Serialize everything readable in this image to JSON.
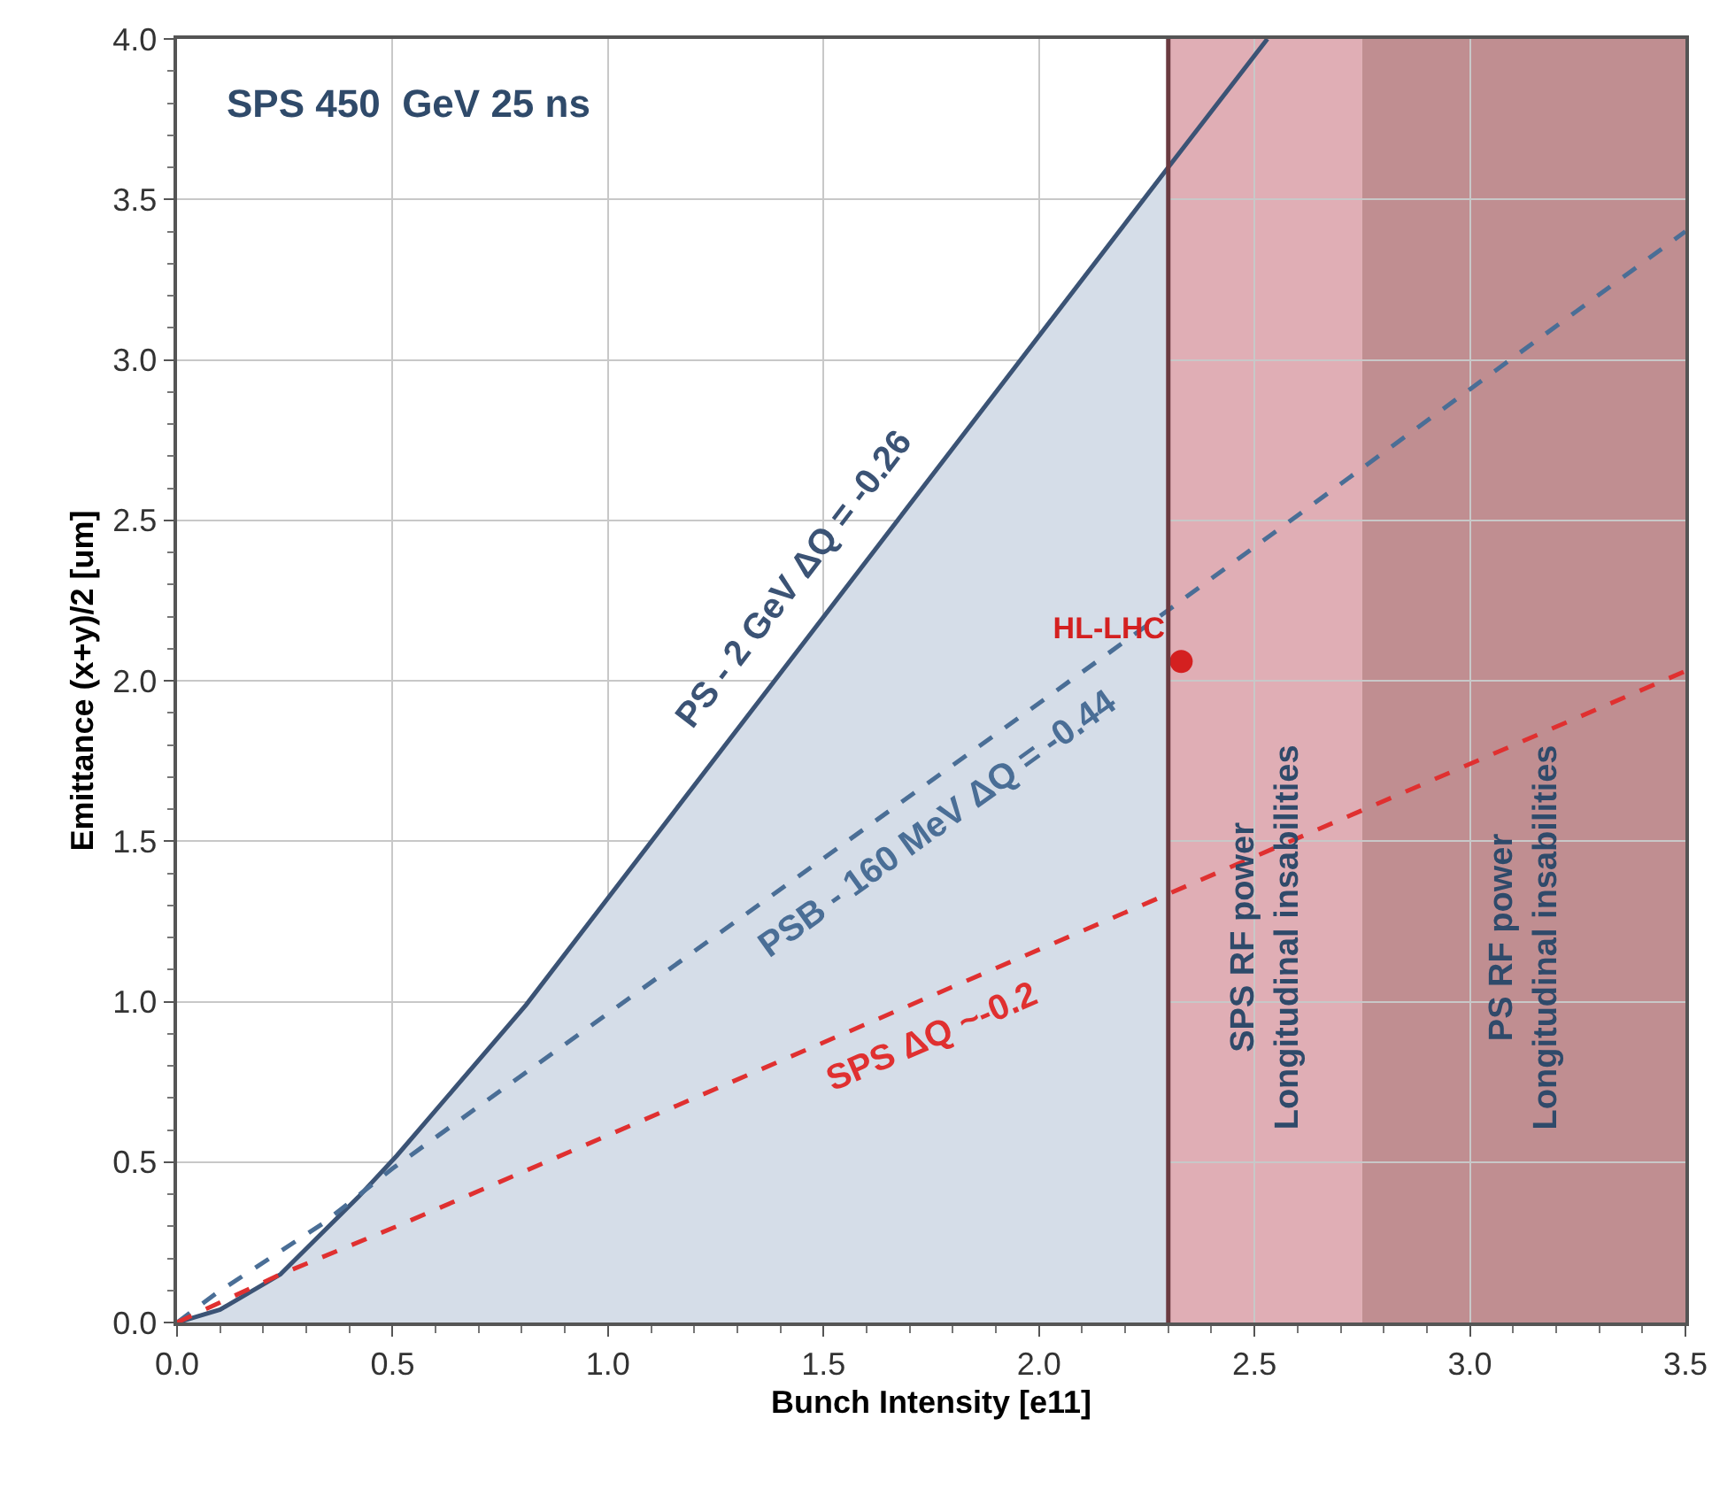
{
  "chart_data": {
    "type": "line",
    "title": "SPS 450  GeV 25 ns",
    "xlabel": "Bunch Intensity [e11]",
    "ylabel": "Emittance (x+y)/2 [um]",
    "xlim": [
      0,
      3.5
    ],
    "ylim": [
      0,
      4
    ],
    "xticks": [
      {
        "value": 0,
        "label": "0.0"
      },
      {
        "value": 0.5,
        "label": "0.5"
      },
      {
        "value": 1,
        "label": "1.0"
      },
      {
        "value": 1.5,
        "label": "1.5"
      },
      {
        "value": 2,
        "label": "2.0"
      },
      {
        "value": 2.5,
        "label": "2.5"
      },
      {
        "value": 3,
        "label": "3.0"
      },
      {
        "value": 3.5,
        "label": "3.5"
      }
    ],
    "yticks": [
      {
        "value": 0,
        "label": "0.0"
      },
      {
        "value": 0.5,
        "label": "0.5"
      },
      {
        "value": 1,
        "label": "1.0"
      },
      {
        "value": 1.5,
        "label": "1.5"
      },
      {
        "value": 2,
        "label": "2.0"
      },
      {
        "value": 2.5,
        "label": "2.5"
      },
      {
        "value": 3,
        "label": "3.0"
      },
      {
        "value": 3.5,
        "label": "3.5"
      },
      {
        "value": 4,
        "label": "4.0"
      }
    ],
    "grid": true,
    "series": [
      {
        "type": "area",
        "color": "#d5dde8",
        "x": [
          0,
          0.1,
          0.24,
          0.42,
          0.51,
          0.81,
          2.3
        ],
        "values": [
          0,
          0.04,
          0.15,
          0.39,
          0.52,
          0.99,
          3.6
        ]
      },
      {
        "name": "PS - 2 GeV ΔQ = -0.26",
        "color": "#3b5375",
        "line_style": "solid",
        "x": [
          0,
          0.1,
          0.24,
          0.42,
          0.51,
          0.81,
          2.3,
          2.53
        ],
        "values": [
          0,
          0.04,
          0.15,
          0.39,
          0.52,
          0.99,
          3.6,
          4.0
        ]
      },
      {
        "name": "PSB - 160 MeV ΔQ = -0.44",
        "color": "#4a6e96",
        "line_style": "dashed",
        "x": [
          0,
          0.09,
          0.34,
          0.5,
          2.3,
          3.5
        ],
        "values": [
          0,
          0.09,
          0.31,
          0.48,
          2.22,
          3.4
        ]
      },
      {
        "name": "SPS ΔQ ~-0.2",
        "color": "#e03030",
        "line_style": "dashed",
        "x": [
          0,
          0.24,
          0.51,
          3.5
        ],
        "values": [
          0,
          0.15,
          0.3,
          2.03
        ]
      },
      {
        "type": "scatter",
        "name": "HL-LHC",
        "color": "#d42020",
        "marker": "circle",
        "x": [
          2.33
        ],
        "values": [
          2.06
        ]
      }
    ],
    "bands": [
      {
        "axis": "x",
        "from": 2.3,
        "to": 2.75,
        "color": "#dba0a8",
        "label": "SPS RF power\nLongitudinal insabilities"
      },
      {
        "axis": "x",
        "from": 2.75,
        "to": 3.5,
        "color": "#b57a7e",
        "label": "PS RF power\nLongitudinal insabilities"
      }
    ],
    "ref_lines": [
      {
        "axis": "x",
        "value": 2.3,
        "color": "#6b3a40",
        "line_style": "solid"
      }
    ]
  }
}
